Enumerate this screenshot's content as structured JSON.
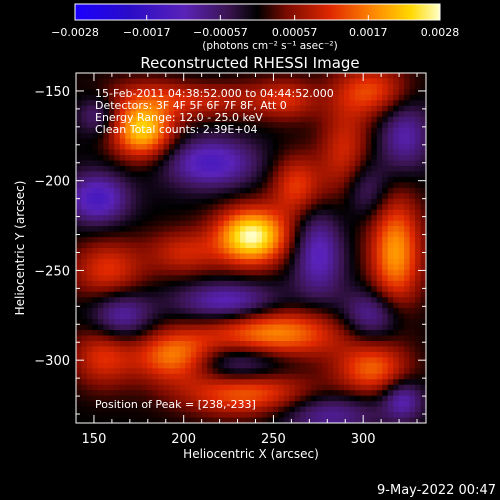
{
  "colorbar": {
    "tick_labels": [
      "−0.0028",
      "−0.0017",
      "−0.00057",
      "0.00057",
      "0.0017",
      "0.0028"
    ],
    "unit_label": "(photons cm⁻² s⁻¹ asec⁻²)",
    "range": [
      -0.0028,
      0.0028
    ]
  },
  "title": "Reconstructed RHESSI Image",
  "overlay": {
    "line1": "15-Feb-2011 04:38:52.000 to 04:44:52.000",
    "line2": "Detectors: 3F 4F 5F 6F 7F 8F, Att 0",
    "line3": "Energy Range: 12.0 - 25.0 keV",
    "line4": "Clean     Total counts: 2.39E+04",
    "peak": "Position of Peak = [238,-233]"
  },
  "footer_timestamp": "9-May-2022 00:47",
  "colors": {
    "background": "#000000",
    "axes": "#ffffff"
  },
  "chart_data": {
    "type": "heatmap",
    "title": "Reconstructed RHESSI Image",
    "xlabel": "Heliocentric X (arcsec)",
    "ylabel": "Heliocentric Y (arcsec)",
    "xlim": [
      140,
      335
    ],
    "ylim": [
      -335,
      -140
    ],
    "x_ticks": [
      150,
      200,
      250,
      300
    ],
    "y_ticks": [
      -150,
      -200,
      -250,
      -300
    ],
    "x_tick_labels": [
      "150",
      "200",
      "250",
      "300"
    ],
    "y_tick_labels": [
      "−150",
      "−200",
      "−250",
      "−300"
    ],
    "colorscale": "rhessi-blue-purple-red-yellow-white",
    "grid": false,
    "peak_position": [
      238,
      -233
    ],
    "sources": [
      {
        "x": 238,
        "y": -231,
        "sx": 14,
        "sy": 11,
        "amp": 1.0
      },
      {
        "x": 177,
        "y": -172,
        "sx": 12,
        "sy": 11,
        "amp": 0.82
      },
      {
        "x": 205,
        "y": -153,
        "sx": 30,
        "sy": 8,
        "amp": 0.5
      },
      {
        "x": 263,
        "y": -203,
        "sx": 10,
        "sy": 12,
        "amp": 0.45
      },
      {
        "x": 200,
        "y": -240,
        "sx": 14,
        "sy": 9,
        "amp": 0.35
      },
      {
        "x": 290,
        "y": -188,
        "sx": 10,
        "sy": 22,
        "amp": 0.4
      },
      {
        "x": 318,
        "y": -240,
        "sx": 10,
        "sy": 22,
        "amp": 0.68
      },
      {
        "x": 158,
        "y": -250,
        "sx": 14,
        "sy": 12,
        "amp": 0.42
      },
      {
        "x": 155,
        "y": -298,
        "sx": 12,
        "sy": 12,
        "amp": 0.4
      },
      {
        "x": 195,
        "y": -298,
        "sx": 16,
        "sy": 10,
        "amp": 0.62
      },
      {
        "x": 250,
        "y": -285,
        "sx": 28,
        "sy": 10,
        "amp": 0.66
      },
      {
        "x": 305,
        "y": -305,
        "sx": 14,
        "sy": 10,
        "amp": 0.52
      },
      {
        "x": 235,
        "y": -318,
        "sx": 25,
        "sy": 9,
        "amp": 0.55
      },
      {
        "x": 305,
        "y": -150,
        "sx": 14,
        "sy": 10,
        "amp": 0.45
      },
      {
        "x": 258,
        "y": -155,
        "sx": 12,
        "sy": 8,
        "amp": 0.3
      },
      {
        "x": 152,
        "y": -210,
        "sx": 12,
        "sy": 10,
        "amp": -0.52
      },
      {
        "x": 215,
        "y": -190,
        "sx": 18,
        "sy": 10,
        "amp": -0.5
      },
      {
        "x": 275,
        "y": -240,
        "sx": 10,
        "sy": 18,
        "amp": -0.45
      },
      {
        "x": 225,
        "y": -268,
        "sx": 20,
        "sy": 8,
        "amp": -0.48
      },
      {
        "x": 165,
        "y": -275,
        "sx": 12,
        "sy": 10,
        "amp": -0.42
      },
      {
        "x": 230,
        "y": -302,
        "sx": 20,
        "sy": 8,
        "amp": -0.42
      },
      {
        "x": 305,
        "y": -275,
        "sx": 12,
        "sy": 10,
        "amp": -0.42
      },
      {
        "x": 280,
        "y": -330,
        "sx": 20,
        "sy": 8,
        "amp": -0.35
      },
      {
        "x": 300,
        "y": -205,
        "sx": 10,
        "sy": 12,
        "amp": -0.35
      },
      {
        "x": 323,
        "y": -175,
        "sx": 10,
        "sy": 14,
        "amp": -0.38
      },
      {
        "x": 210,
        "y": -148,
        "sx": 20,
        "sy": 8,
        "amp": -0.2
      },
      {
        "x": 152,
        "y": -163,
        "sx": 8,
        "sy": 8,
        "amp": -0.3
      },
      {
        "x": 322,
        "y": -322,
        "sx": 8,
        "sy": 8,
        "amp": -0.4
      }
    ]
  }
}
